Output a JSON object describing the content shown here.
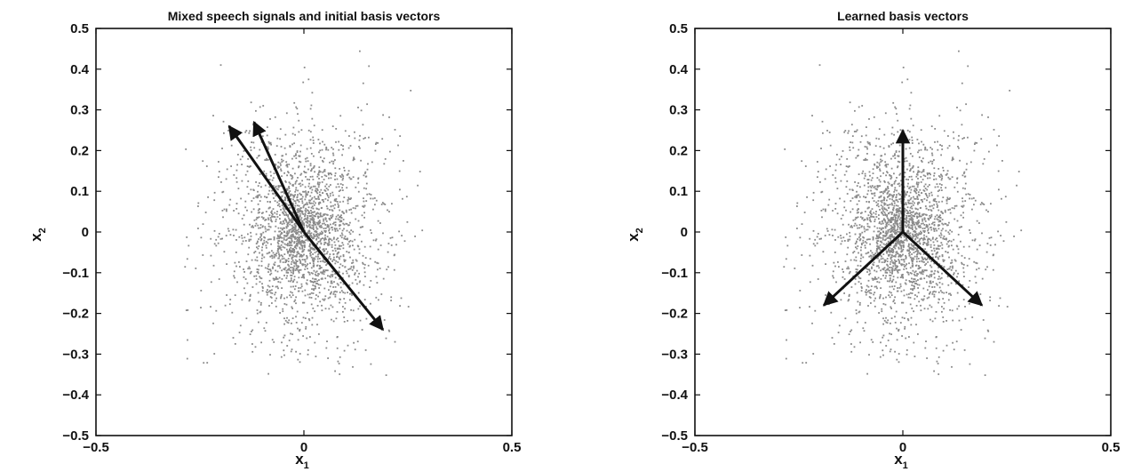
{
  "chart_data": [
    {
      "type": "scatter",
      "title": "Mixed speech signals and initial basis vectors",
      "xlabel": "x",
      "xlabel_sub": "1",
      "ylabel": "x",
      "ylabel_sub": "2",
      "xlim": [
        -0.5,
        0.5
      ],
      "ylim": [
        -0.5,
        0.5
      ],
      "xticks": [
        "-0.5",
        "0",
        "0.5"
      ],
      "yticks": [
        "0.5",
        "0.4",
        "0.3",
        "0.2",
        "0.1",
        "0",
        "-0.1",
        "-0.2",
        "-0.3",
        "-0.4",
        "-0.5"
      ],
      "xtick_values": [
        -0.5,
        0,
        0.5
      ],
      "ytick_values": [
        0.5,
        0.4,
        0.3,
        0.2,
        0.1,
        0,
        -0.1,
        -0.2,
        -0.3,
        -0.4,
        -0.5
      ],
      "grid": false,
      "point_color": "#8a8a8a",
      "arrow_color": "#111111",
      "points": "dense cloud of mixed speech samples centered near (0, 0), extending roughly from x -0.28 to 0.28 and y -0.38 to 0.46",
      "arrows": [
        {
          "from": [
            0,
            0
          ],
          "to": [
            -0.18,
            0.26
          ]
        },
        {
          "from": [
            0,
            0
          ],
          "to": [
            -0.12,
            0.27
          ]
        },
        {
          "from": [
            0,
            0
          ],
          "to": [
            0.19,
            -0.24
          ]
        }
      ]
    },
    {
      "type": "scatter",
      "title": "Learned basis vectors",
      "xlabel": "x",
      "xlabel_sub": "1",
      "ylabel": "x",
      "ylabel_sub": "2",
      "xlim": [
        -0.5,
        0.5
      ],
      "ylim": [
        -0.5,
        0.5
      ],
      "xticks": [
        "-0.5",
        "0",
        "0.5"
      ],
      "yticks": [
        "0.5",
        "0.4",
        "0.3",
        "0.2",
        "0.1",
        "0",
        "-0.1",
        "-0.2",
        "-0.3",
        "-0.4",
        "-0.5"
      ],
      "xtick_values": [
        -0.5,
        0,
        0.5
      ],
      "ytick_values": [
        0.5,
        0.4,
        0.3,
        0.2,
        0.1,
        0,
        -0.1,
        -0.2,
        -0.3,
        -0.4,
        -0.5
      ],
      "grid": false,
      "point_color": "#8a8a8a",
      "arrow_color": "#111111",
      "points": "same sample cloud as left panel",
      "arrows": [
        {
          "from": [
            0,
            0
          ],
          "to": [
            0,
            0.25
          ]
        },
        {
          "from": [
            0,
            0
          ],
          "to": [
            -0.19,
            -0.18
          ]
        },
        {
          "from": [
            0,
            0
          ],
          "to": [
            0.19,
            -0.18
          ]
        }
      ]
    }
  ]
}
